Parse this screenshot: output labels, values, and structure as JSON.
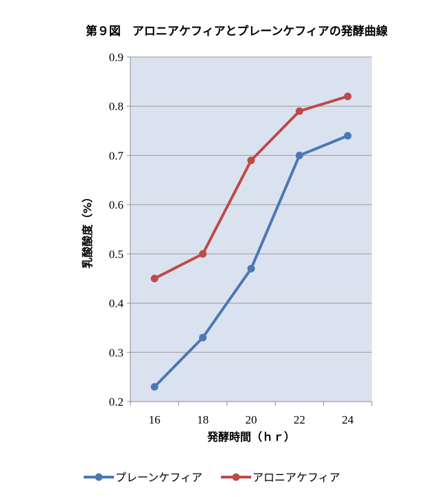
{
  "chart_data": {
    "type": "line",
    "title": "第９図　アロニアケフィアとプレーンケフィアの発酵曲線",
    "xlabel": "発酵時間（ｈｒ）",
    "ylabel": "乳酸酸度（%）",
    "categories": [
      "16",
      "18",
      "20",
      "22",
      "24"
    ],
    "ylim": [
      0.2,
      0.9
    ],
    "yticks": [
      "0.2",
      "0.3",
      "0.4",
      "0.5",
      "0.6",
      "0.7",
      "0.8",
      "0.9"
    ],
    "grid": true,
    "legend_position": "bottom",
    "series": [
      {
        "name": "プレーンケフィア",
        "color": "#4a78b4",
        "values": [
          0.23,
          0.33,
          0.47,
          0.7,
          0.74
        ]
      },
      {
        "name": "アロニアケフィア",
        "color": "#bb4b48",
        "values": [
          0.45,
          0.5,
          0.69,
          0.79,
          0.82
        ]
      }
    ],
    "plot_background": "#dbe2ef"
  }
}
